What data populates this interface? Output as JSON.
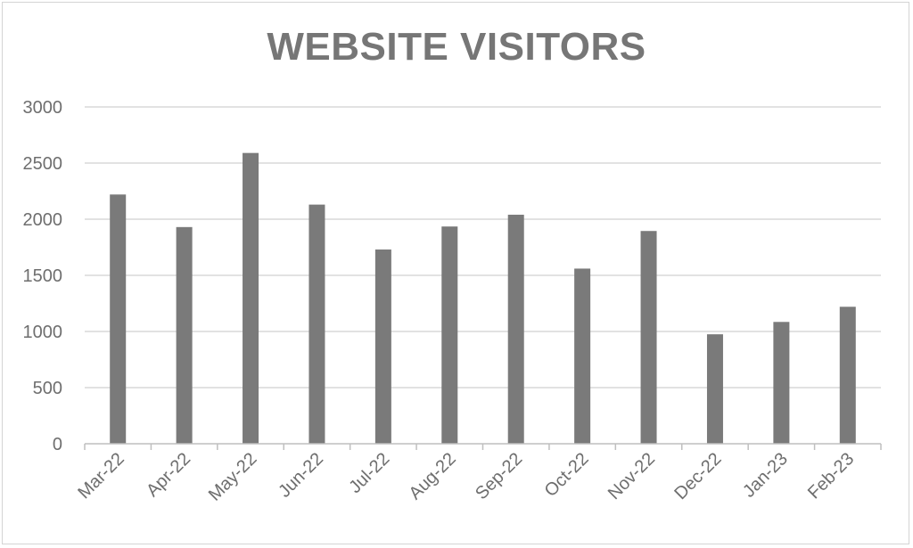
{
  "chart_data": {
    "type": "bar",
    "title": "WEBSITE VISITORS",
    "categories": [
      "Mar-22",
      "Apr-22",
      "May-22",
      "Jun-22",
      "Jul-22",
      "Aug-22",
      "Sep-22",
      "Oct-22",
      "Nov-22",
      "Dec-22",
      "Jan-23",
      "Feb-23"
    ],
    "values": [
      2220,
      1930,
      2590,
      2130,
      1730,
      1935,
      2040,
      1560,
      1895,
      975,
      1085,
      1220
    ],
    "ylim": [
      0,
      3000
    ],
    "yticks": [
      0,
      500,
      1000,
      1500,
      2000,
      2500,
      3000
    ],
    "xlabel": "",
    "ylabel": "",
    "grid": true,
    "legend": "none",
    "bar_color": "#7a7a7a",
    "grid_color": "#d9d9d9",
    "axis_color": "#bfbfbf"
  }
}
